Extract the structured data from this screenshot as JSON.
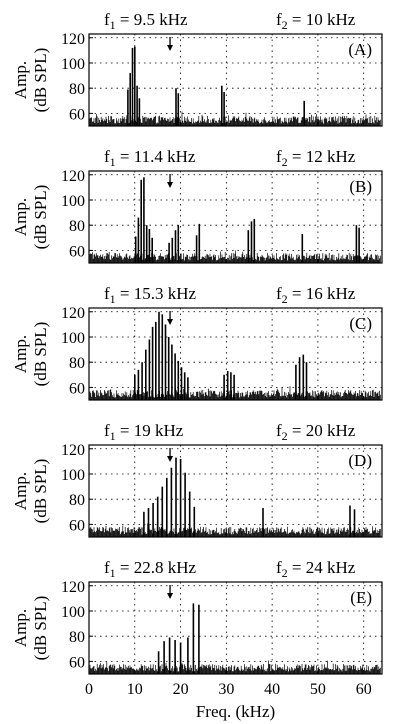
{
  "chart_data": {
    "type": "line",
    "xlabel": "Freq. (kHz)",
    "ylabel": "Amp. (dB SPL)",
    "ylabel_lines": [
      "Amp.",
      "(dB SPL)"
    ],
    "xlim": [
      0,
      64
    ],
    "ylim": [
      50,
      123
    ],
    "xticks": [
      0,
      10,
      20,
      30,
      40,
      50,
      60
    ],
    "yticks": [
      60,
      80,
      100,
      120
    ],
    "grid": true,
    "arrow_marker_khz": 17.7,
    "panels": [
      {
        "label": "(A)",
        "f1_label": "f",
        "f1_sub": "1",
        "f1_text": " = 9.5 kHz",
        "f2_label": "f",
        "f2_sub": "2",
        "f2_text": " = 10 kHz",
        "peaks": [
          [
            8.5,
            79
          ],
          [
            9.0,
            92
          ],
          [
            9.5,
            112
          ],
          [
            10.0,
            113
          ],
          [
            10.5,
            82
          ],
          [
            11.0,
            72
          ],
          [
            19.0,
            80
          ],
          [
            19.5,
            76
          ],
          [
            29.0,
            82
          ],
          [
            29.5,
            77
          ],
          [
            47.0,
            70
          ]
        ]
      },
      {
        "label": "(B)",
        "f1_label": "f",
        "f1_sub": "1",
        "f1_text": " = 11.4 kHz",
        "f2_label": "f",
        "f2_sub": "2",
        "f2_text": " = 12 kHz",
        "peaks": [
          [
            10.2,
            71
          ],
          [
            10.8,
            86
          ],
          [
            11.4,
            116
          ],
          [
            12.0,
            118
          ],
          [
            12.6,
            80
          ],
          [
            13.2,
            77
          ],
          [
            13.8,
            70
          ],
          [
            17.5,
            66
          ],
          [
            18.2,
            70
          ],
          [
            18.9,
            76
          ],
          [
            19.5,
            80
          ],
          [
            23.5,
            72
          ],
          [
            24.1,
            81
          ],
          [
            34.8,
            76
          ],
          [
            35.5,
            83
          ],
          [
            36.1,
            85
          ],
          [
            46.6,
            73
          ],
          [
            58.4,
            80
          ],
          [
            59.0,
            78
          ]
        ]
      },
      {
        "label": "(C)",
        "f1_label": "f",
        "f1_sub": "1",
        "f1_text": " = 15.3 kHz",
        "f2_label": "f",
        "f2_sub": "2",
        "f2_text": " = 16 kHz",
        "peaks": [
          [
            10.0,
            70
          ],
          [
            10.8,
            74
          ],
          [
            11.6,
            80
          ],
          [
            12.4,
            90
          ],
          [
            13.2,
            98
          ],
          [
            13.9,
            108
          ],
          [
            14.6,
            112
          ],
          [
            15.3,
            120
          ],
          [
            16.0,
            118
          ],
          [
            16.7,
            110
          ],
          [
            17.4,
            100
          ],
          [
            18.1,
            94
          ],
          [
            18.8,
            87
          ],
          [
            19.5,
            81
          ],
          [
            20.2,
            76
          ],
          [
            20.9,
            72
          ],
          [
            21.6,
            68
          ],
          [
            29.5,
            70
          ],
          [
            30.3,
            73
          ],
          [
            31.0,
            72
          ],
          [
            31.7,
            70
          ],
          [
            45.2,
            78
          ],
          [
            46.0,
            84
          ],
          [
            46.8,
            86
          ],
          [
            47.5,
            80
          ]
        ]
      },
      {
        "label": "(D)",
        "f1_label": "f",
        "f1_sub": "1",
        "f1_text": " = 19 kHz",
        "f2_label": "f",
        "f2_sub": "2",
        "f2_text": " = 20 kHz",
        "peaks": [
          [
            12.0,
            70
          ],
          [
            13.0,
            73
          ],
          [
            14.0,
            77
          ],
          [
            15.0,
            82
          ],
          [
            16.0,
            90
          ],
          [
            17.0,
            97
          ],
          [
            18.0,
            105
          ],
          [
            19.0,
            113
          ],
          [
            20.0,
            112
          ],
          [
            21.0,
            101
          ],
          [
            22.0,
            86
          ],
          [
            23.0,
            74
          ],
          [
            38.0,
            73
          ],
          [
            57.0,
            75
          ],
          [
            58.0,
            72
          ]
        ]
      },
      {
        "label": "(E)",
        "f1_label": "f",
        "f1_sub": "1",
        "f1_text": " = 22.8 kHz",
        "f2_label": "f",
        "f2_sub": "2",
        "f2_text": " = 24 kHz",
        "peaks": [
          [
            15.2,
            68
          ],
          [
            16.4,
            76
          ],
          [
            17.6,
            79
          ],
          [
            18.8,
            77
          ],
          [
            20.0,
            75
          ],
          [
            21.6,
            79
          ],
          [
            22.8,
            106
          ],
          [
            24.0,
            105
          ]
        ]
      }
    ]
  }
}
